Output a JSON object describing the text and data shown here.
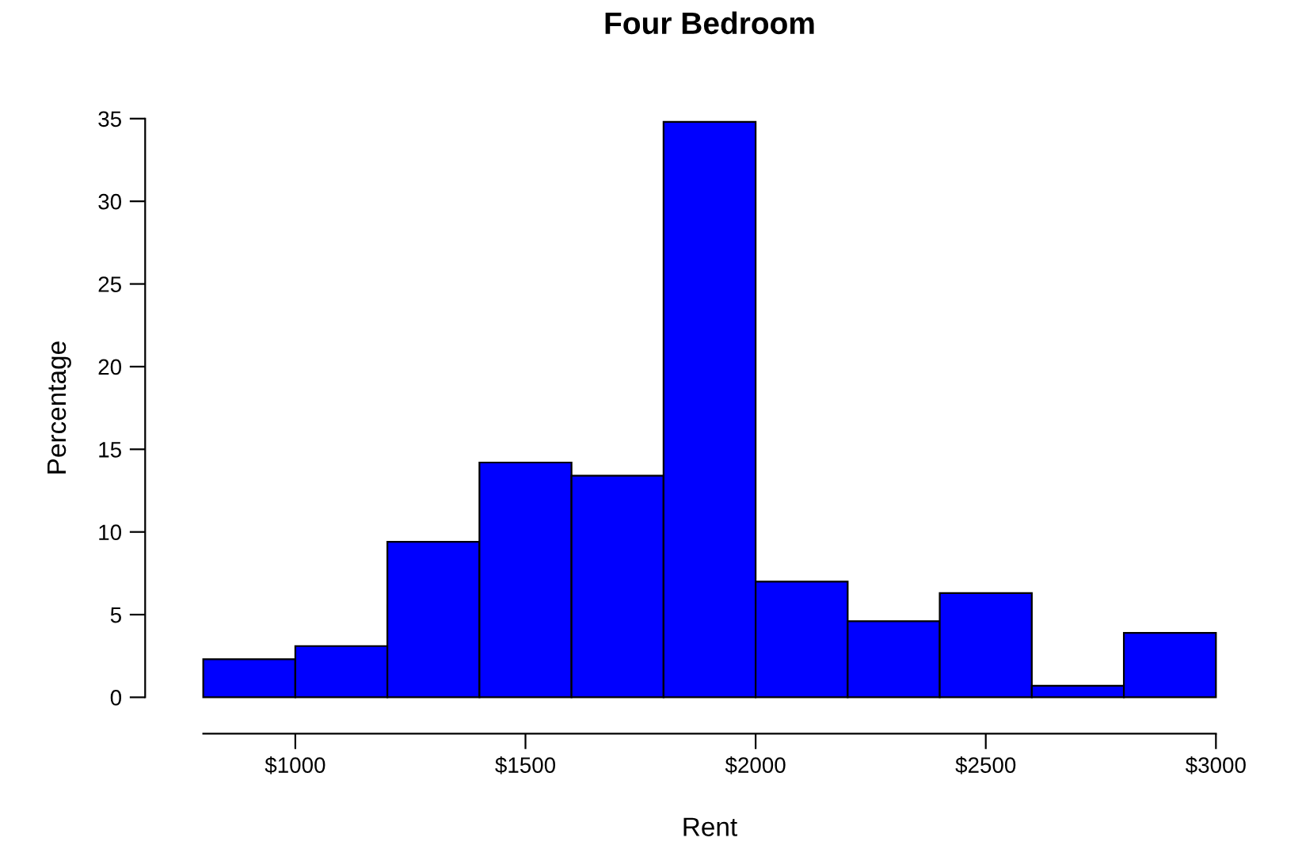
{
  "chart_data": {
    "type": "histogram",
    "title": "Four Bedroom",
    "xlabel": "Rent",
    "ylabel": "Percentage",
    "bins": [
      800,
      1000,
      1200,
      1400,
      1600,
      1800,
      2000,
      2200,
      2400,
      2600,
      2800,
      3000
    ],
    "values": [
      2.3,
      3.1,
      9.4,
      14.2,
      13.4,
      34.8,
      7.0,
      4.6,
      6.3,
      0.7,
      3.9
    ],
    "color": "#0000ff",
    "xlim": [
      800,
      3000
    ],
    "ylim": [
      0,
      35
    ],
    "xticks": [
      {
        "value": 1000,
        "label": "$1000"
      },
      {
        "value": 1500,
        "label": "$1500"
      },
      {
        "value": 2000,
        "label": "$2000"
      },
      {
        "value": 2500,
        "label": "$2500"
      },
      {
        "value": 3000,
        "label": "$3000"
      }
    ],
    "yticks": [
      0,
      5,
      10,
      15,
      20,
      25,
      30,
      35
    ],
    "grid": false,
    "legend": false
  }
}
